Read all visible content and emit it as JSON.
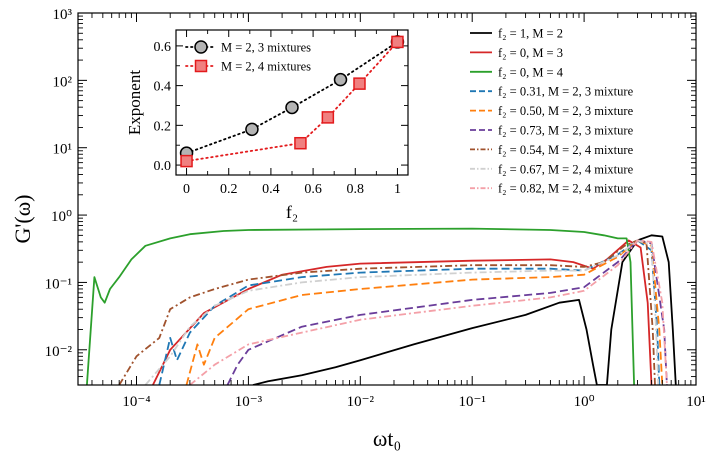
{
  "chart_data": [
    {
      "type": "line",
      "xlabel": "ωt₀",
      "ylabel": "G'(ω)",
      "x_scale": "log",
      "y_scale": "log",
      "xlim": [
        3e-05,
        10
      ],
      "ylim": [
        0.003,
        1000
      ],
      "x_ticks": [
        "10⁻⁴",
        "10⁻³",
        "10⁻²",
        "10⁻¹",
        "10⁰",
        "10¹"
      ],
      "y_ticks": [
        "10⁻²",
        "10⁻¹",
        "10⁰",
        "10¹",
        "10²",
        "10³"
      ],
      "legend_position": "top-right",
      "series": [
        {
          "name": "f₂ = 1, M = 2",
          "color": "#000000",
          "dash": "solid",
          "points": [
            [
              0.0011,
              0.003
            ],
            [
              0.0015,
              0.0034
            ],
            [
              0.003,
              0.0042
            ],
            [
              0.006,
              0.0055
            ],
            [
              0.01,
              0.007
            ],
            [
              0.03,
              0.012
            ],
            [
              0.1,
              0.021
            ],
            [
              0.3,
              0.033
            ],
            [
              0.6,
              0.05
            ],
            [
              0.9,
              0.055
            ],
            [
              1.05,
              0.02
            ],
            [
              1.2,
              0.006
            ],
            [
              1.3,
              0.003
            ],
            [
              1.6,
              0.003
            ],
            [
              1.75,
              0.02
            ],
            [
              2.2,
              0.2
            ],
            [
              3,
              0.42
            ],
            [
              4,
              0.5
            ],
            [
              5,
              0.48
            ],
            [
              5.7,
              0.2
            ],
            [
              6.2,
              0.02
            ],
            [
              6.6,
              0.003
            ]
          ]
        },
        {
          "name": "f₂ = 0, M = 3",
          "color": "#d62728",
          "dash": "solid",
          "points": [
            [
              0.00014,
              0.003
            ],
            [
              0.0002,
              0.01
            ],
            [
              0.0004,
              0.035
            ],
            [
              0.001,
              0.08
            ],
            [
              0.002,
              0.13
            ],
            [
              0.005,
              0.17
            ],
            [
              0.01,
              0.19
            ],
            [
              0.1,
              0.21
            ],
            [
              0.5,
              0.22
            ],
            [
              0.8,
              0.2
            ],
            [
              1.2,
              0.16
            ],
            [
              1.6,
              0.22
            ],
            [
              2.5,
              0.42
            ],
            [
              3.2,
              0.33
            ],
            [
              3.7,
              0.05
            ],
            [
              4,
              0.003
            ]
          ]
        },
        {
          "name": "f₂ = 0, M = 4",
          "color": "#2ca02c",
          "dash": "solid",
          "points": [
            [
              3.6e-05,
              0.003
            ],
            [
              4.2e-05,
              0.12
            ],
            [
              4.8e-05,
              0.06
            ],
            [
              5.2e-05,
              0.05
            ],
            [
              5.8e-05,
              0.08
            ],
            [
              7e-05,
              0.12
            ],
            [
              9e-05,
              0.22
            ],
            [
              0.00012,
              0.35
            ],
            [
              0.0002,
              0.45
            ],
            [
              0.0003,
              0.52
            ],
            [
              0.0006,
              0.58
            ],
            [
              0.001,
              0.6
            ],
            [
              0.01,
              0.62
            ],
            [
              0.1,
              0.63
            ],
            [
              0.5,
              0.6
            ],
            [
              1,
              0.56
            ],
            [
              1.5,
              0.5
            ],
            [
              2,
              0.45
            ],
            [
              2.4,
              0.45
            ],
            [
              2.6,
              0.2
            ],
            [
              2.8,
              0.003
            ]
          ]
        },
        {
          "name": "f₂ = 0.31, M = 2, 3 mixture",
          "color": "#1f77b4",
          "dash": "8 4",
          "points": [
            [
              0.00016,
              0.003
            ],
            [
              0.0002,
              0.015
            ],
            [
              0.00023,
              0.007
            ],
            [
              0.0003,
              0.018
            ],
            [
              0.0005,
              0.045
            ],
            [
              0.001,
              0.09
            ],
            [
              0.003,
              0.12
            ],
            [
              0.01,
              0.14
            ],
            [
              0.1,
              0.16
            ],
            [
              0.5,
              0.16
            ],
            [
              1,
              0.15
            ],
            [
              2,
              0.26
            ],
            [
              3,
              0.42
            ],
            [
              4,
              0.3
            ],
            [
              4.5,
              0.02
            ],
            [
              4.7,
              0.003
            ]
          ]
        },
        {
          "name": "f₂ = 0.50, M = 2, 3 mixture",
          "color": "#ff7f0e",
          "dash": "8 4",
          "points": [
            [
              0.00028,
              0.003
            ],
            [
              0.00035,
              0.012
            ],
            [
              0.0004,
              0.006
            ],
            [
              0.0005,
              0.015
            ],
            [
              0.001,
              0.04
            ],
            [
              0.003,
              0.065
            ],
            [
              0.01,
              0.08
            ],
            [
              0.1,
              0.11
            ],
            [
              0.5,
              0.12
            ],
            [
              1,
              0.13
            ],
            [
              2,
              0.24
            ],
            [
              3,
              0.42
            ],
            [
              4,
              0.35
            ],
            [
              4.7,
              0.02
            ],
            [
              5,
              0.003
            ]
          ]
        },
        {
          "name": "f₂ = 0.73, M = 2, 3 mixture",
          "color": "#6a3d9a",
          "dash": "8 4",
          "points": [
            [
              0.00065,
              0.003
            ],
            [
              0.0008,
              0.006
            ],
            [
              0.001,
              0.01
            ],
            [
              0.003,
              0.022
            ],
            [
              0.01,
              0.033
            ],
            [
              0.1,
              0.055
            ],
            [
              0.5,
              0.07
            ],
            [
              1,
              0.085
            ],
            [
              2,
              0.2
            ],
            [
              3,
              0.42
            ],
            [
              4,
              0.38
            ],
            [
              5.2,
              0.02
            ],
            [
              5.5,
              0.003
            ]
          ]
        },
        {
          "name": "f₂ = 0.54, M = 2, 4 mixture",
          "color": "#a0522d",
          "dash": "7 3 2 3",
          "points": [
            [
              7e-05,
              0.003
            ],
            [
              0.0001,
              0.008
            ],
            [
              0.00016,
              0.015
            ],
            [
              0.0002,
              0.04
            ],
            [
              0.0003,
              0.06
            ],
            [
              0.0005,
              0.08
            ],
            [
              0.001,
              0.11
            ],
            [
              0.003,
              0.14
            ],
            [
              0.01,
              0.16
            ],
            [
              0.1,
              0.18
            ],
            [
              0.5,
              0.18
            ],
            [
              1,
              0.17
            ],
            [
              1.5,
              0.2
            ],
            [
              2.3,
              0.35
            ],
            [
              3,
              0.42
            ],
            [
              3.6,
              0.4
            ],
            [
              4.1,
              0.02
            ],
            [
              4.3,
              0.003
            ]
          ]
        },
        {
          "name": "f₂ = 0.67, M = 2, 4 mixture",
          "color": "#d0d0d0",
          "dash": "7 3 2 3",
          "points": [
            [
              0.00012,
              0.003
            ],
            [
              0.0002,
              0.008
            ],
            [
              0.0003,
              0.022
            ],
            [
              0.0005,
              0.045
            ],
            [
              0.001,
              0.075
            ],
            [
              0.003,
              0.1
            ],
            [
              0.01,
              0.12
            ],
            [
              0.1,
              0.14
            ],
            [
              0.5,
              0.15
            ],
            [
              1,
              0.15
            ],
            [
              2,
              0.25
            ],
            [
              3,
              0.42
            ],
            [
              4,
              0.36
            ],
            [
              4.4,
              0.02
            ],
            [
              4.6,
              0.003
            ]
          ]
        },
        {
          "name": "f₂ = 0.82, M = 2, 4 mixture",
          "color": "#f4a0a8",
          "dash": "7 3 2 3",
          "points": [
            [
              0.0003,
              0.003
            ],
            [
              0.0005,
              0.006
            ],
            [
              0.001,
              0.012
            ],
            [
              0.003,
              0.018
            ],
            [
              0.01,
              0.028
            ],
            [
              0.1,
              0.045
            ],
            [
              0.5,
              0.06
            ],
            [
              1,
              0.075
            ],
            [
              2,
              0.18
            ],
            [
              3,
              0.42
            ],
            [
              4,
              0.4
            ],
            [
              5,
              0.05
            ],
            [
              5.5,
              0.003
            ]
          ]
        }
      ]
    },
    {
      "type": "scatter",
      "xlabel": "f₂",
      "ylabel": "Exponent",
      "xlim": [
        -0.05,
        1.05
      ],
      "ylim": [
        -0.05,
        0.68
      ],
      "x_ticks": [
        "0",
        "0.2",
        "0.4",
        "0.6",
        "0.8",
        "1"
      ],
      "y_ticks": [
        "0.0",
        "0.2",
        "0.4",
        "0.6"
      ],
      "legend_position": "top-left",
      "series": [
        {
          "name": "M = 2, 3 mixtures",
          "color": "#000000",
          "marker": "circle",
          "marker_fill": "#b4b4b4",
          "points": [
            [
              0,
              0.06
            ],
            [
              0.31,
              0.18
            ],
            [
              0.5,
              0.29
            ],
            [
              0.73,
              0.43
            ],
            [
              1,
              0.62
            ]
          ]
        },
        {
          "name": "M = 2, 4 mixtures",
          "color": "#e31a1c",
          "marker": "square",
          "marker_fill": "#f08080",
          "points": [
            [
              0,
              0.02
            ],
            [
              0.54,
              0.11
            ],
            [
              0.67,
              0.24
            ],
            [
              0.82,
              0.41
            ],
            [
              1,
              0.62
            ]
          ]
        }
      ]
    }
  ]
}
